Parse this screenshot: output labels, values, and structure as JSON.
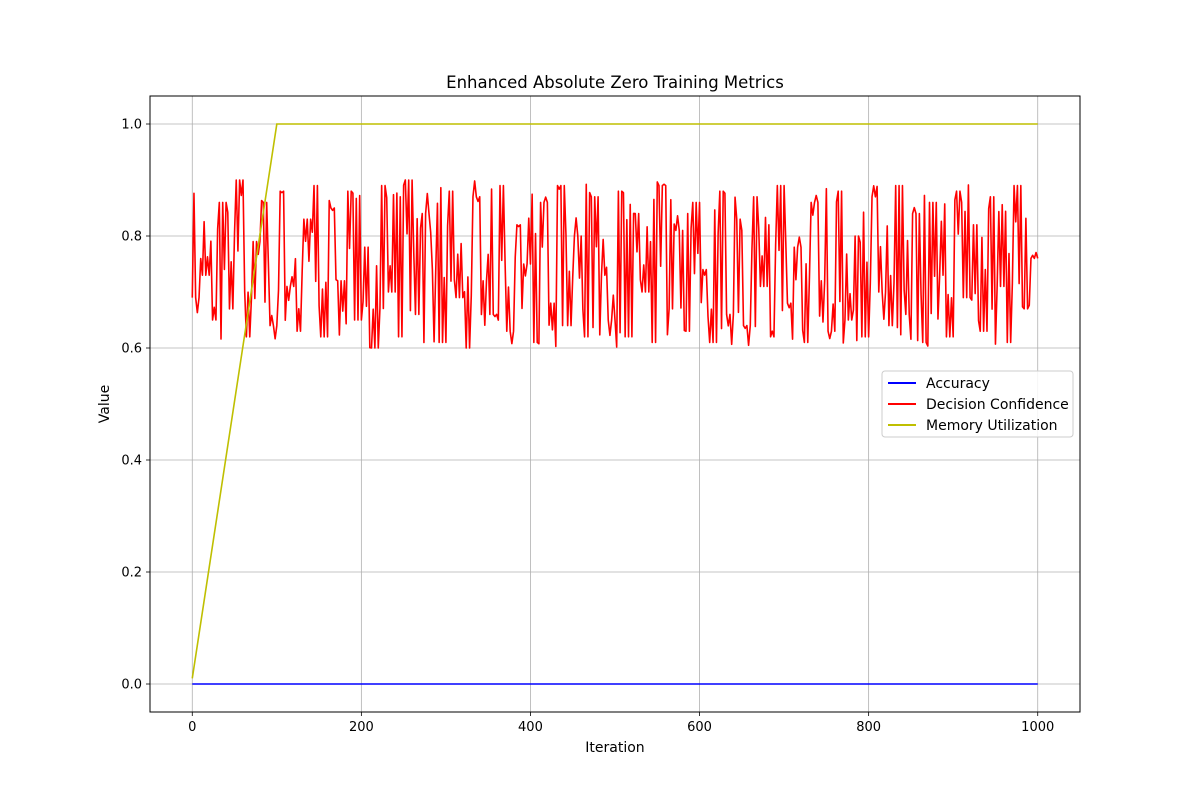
{
  "chart_data": {
    "type": "line",
    "title": "Enhanced Absolute Zero Training Metrics",
    "xlabel": "Iteration",
    "ylabel": "Value",
    "xlim": [
      -50,
      1050
    ],
    "ylim": [
      -0.05,
      1.05
    ],
    "xticks": [
      0,
      200,
      400,
      600,
      800,
      1000
    ],
    "yticks": [
      0.0,
      0.2,
      0.4,
      0.6,
      0.8,
      1.0
    ],
    "xtick_labels": [
      "0",
      "200",
      "400",
      "600",
      "800",
      "1000"
    ],
    "ytick_labels": [
      "0.0",
      "0.2",
      "0.4",
      "0.6",
      "0.8",
      "1.0"
    ],
    "grid": true,
    "legend_position": "center-right",
    "series": [
      {
        "name": "Accuracy",
        "color": "#0000ff",
        "x": [
          0,
          1000
        ],
        "y": [
          0.0,
          0.0
        ]
      },
      {
        "name": "Decision Confidence",
        "color": "#ff0000",
        "x_start": 0,
        "x_end": 1000,
        "y_min": 0.6,
        "y_max": 0.9,
        "note_pattern": "noisy",
        "y_sampled": [
          0.69,
          0.73,
          0.65,
          0.86,
          0.67,
          0.9,
          0.62,
          0.79,
          0.86,
          0.64,
          0.88,
          0.71,
          0.63,
          0.83,
          0.89,
          0.62,
          0.85,
          0.72,
          0.88,
          0.65,
          0.78,
          0.6,
          0.89,
          0.7,
          0.62,
          0.9,
          0.66,
          0.84,
          0.74,
          0.61,
          0.88,
          0.69,
          0.6,
          0.87,
          0.72,
          0.66,
          0.89,
          0.63,
          0.82,
          0.75,
          0.61,
          0.86,
          0.68,
          0.89,
          0.64,
          0.8,
          0.62,
          0.87,
          0.73,
          0.65,
          0.88,
          0.62,
          0.84,
          0.7,
          0.61,
          0.89,
          0.67,
          0.81,
          0.63,
          0.86,
          0.74,
          0.61,
          0.88,
          0.66,
          0.83,
          0.64,
          0.87,
          0.71,
          0.62,
          0.89,
          0.68,
          0.78,
          0.61,
          0.86,
          0.72,
          0.63,
          0.88,
          0.65,
          0.8,
          0.62,
          0.87,
          0.7,
          0.64,
          0.89,
          0.66,
          0.84,
          0.61,
          0.86,
          0.73,
          0.62,
          0.88,
          0.69,
          0.82,
          0.63,
          0.87,
          0.71,
          0.61,
          0.89,
          0.67,
          0.76
        ]
      },
      {
        "name": "Memory Utilization",
        "color": "#bfbf00",
        "x": [
          0,
          100,
          1000
        ],
        "y": [
          0.01,
          1.0,
          1.0
        ]
      }
    ]
  }
}
